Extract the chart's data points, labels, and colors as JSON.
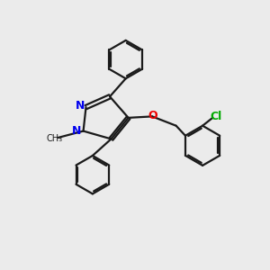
{
  "background_color": "#ebebeb",
  "bond_color": "#1a1a1a",
  "n_color": "#0000ee",
  "o_color": "#ee0000",
  "cl_color": "#00aa00",
  "line_width": 1.6,
  "figsize": [
    3.0,
    3.0
  ],
  "dpi": 100,
  "xlim": [
    0,
    10
  ],
  "ylim": [
    0,
    10
  ]
}
